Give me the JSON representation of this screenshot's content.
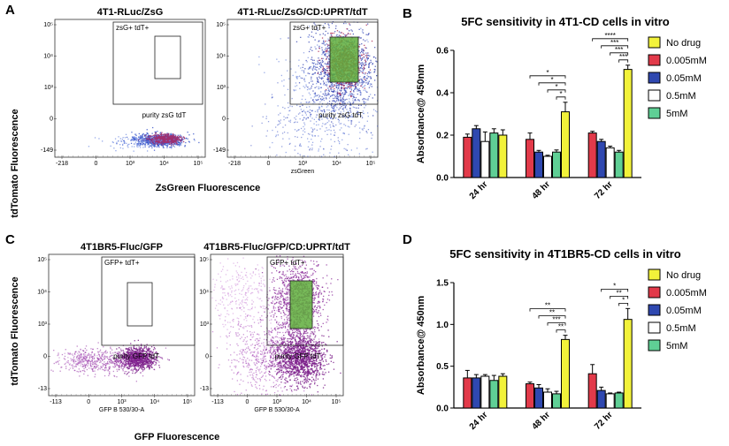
{
  "panels": [
    {
      "label": "A"
    },
    {
      "label": "B"
    },
    {
      "label": "C"
    },
    {
      "label": "D"
    }
  ],
  "flow": {
    "A": {
      "ylabel": "tdTomato Fluorescence",
      "xlabel": "ZsGreen Fluorescence",
      "plots": [
        {
          "title": "4T1-RLuc/ZsG",
          "gate_label": "zsG+ tdT+",
          "purity_label": "purity zsG tdT",
          "x_axis_small": "",
          "y_ticks": [
            "10⁵",
            "10⁴",
            "10³",
            "0",
            "-149"
          ],
          "x_ticks": [
            "-218",
            "0",
            "10³",
            "10⁴",
            "10⁵"
          ]
        },
        {
          "title": "4T1-RLuc/ZsG/CD:UPRT/tdT",
          "gate_label": "zsG+ tdT+",
          "purity_label": "purity zsG tdT",
          "x_axis_small": "zsGreen",
          "y_ticks": [
            "10⁵",
            "10⁴",
            "10³",
            "0",
            "-149"
          ],
          "x_ticks": [
            "-218",
            "0",
            "10³",
            "10⁴",
            "10⁵"
          ]
        }
      ]
    },
    "C": {
      "ylabel": "tdTomato Fluorescence",
      "xlabel": "GFP Fluorescence",
      "plots": [
        {
          "title": "4T1BR5-Fluc/GFP",
          "gate_label": "GFP+ tdT+",
          "purity_label": "purity GFP tdT",
          "x_axis_small": "GFP B 530/30-A",
          "y_ticks": [
            "10⁵",
            "10⁴",
            "10³",
            "0",
            "-13"
          ],
          "x_ticks": [
            "-113",
            "0",
            "10³",
            "10⁴",
            "10⁵"
          ]
        },
        {
          "title": "4T1BR5-Fluc/GFP/CD:UPRT/tdT",
          "gate_label": "GFP+ tdT+",
          "purity_label": "purity GFP tdT",
          "x_axis_small": "GFP B 530/30-A",
          "y_ticks": [
            "10⁵",
            "10⁴",
            "10³",
            "0",
            "-13"
          ],
          "x_ticks": [
            "-113",
            "0",
            "10³",
            "10⁴",
            "10⁵"
          ]
        }
      ]
    }
  },
  "colors": {
    "no_drug": "#f2f23a",
    "c0005": "#e23a4a",
    "c005": "#2f48b0",
    "c05": "#ffffff",
    "c5": "#5fcf95",
    "flow_density": "#7b1f8a",
    "gate_fill": "#5fae3c"
  },
  "chart_data": [
    {
      "type": "bar",
      "title": "5FC sensitivity in 4T1-CD cells in vitro",
      "xlabel": "",
      "ylabel": "Absorbance@ 450nm",
      "categories": [
        "24 hr",
        "48 hr",
        "72 hr"
      ],
      "ylim": [
        0,
        0.6
      ],
      "yticks": [
        "0.0",
        "0.2",
        "0.4",
        "0.6"
      ],
      "series": [
        {
          "name": "0.005mM",
          "values": [
            0.19,
            0.18,
            0.21
          ],
          "errors": [
            0.015,
            0.03,
            0.008
          ]
        },
        {
          "name": "0.05mM",
          "values": [
            0.23,
            0.12,
            0.17
          ],
          "errors": [
            0.015,
            0.008,
            0.01
          ]
        },
        {
          "name": "0.5mM",
          "values": [
            0.17,
            0.1,
            0.14
          ],
          "errors": [
            0.045,
            0.005,
            0.008
          ]
        },
        {
          "name": "5mM",
          "values": [
            0.21,
            0.12,
            0.12
          ],
          "errors": [
            0.02,
            0.01,
            0.008
          ]
        },
        {
          "name": "No drug",
          "values": [
            0.2,
            0.31,
            0.51
          ],
          "errors": [
            0.025,
            0.045,
            0.02
          ]
        }
      ],
      "legend_order": [
        "No drug",
        "0.005mM",
        "0.05mM",
        "0.5mM",
        "5mM"
      ],
      "significance": {
        "48 hr": [
          "*",
          "*",
          "*",
          "*"
        ],
        "72 hr": [
          "****",
          "***",
          "***",
          "***"
        ]
      }
    },
    {
      "type": "bar",
      "title": "5FC sensitivity in 4T1BR5-CD cells in vitro",
      "xlabel": "",
      "ylabel": "Absorbance@ 450nm",
      "categories": [
        "24 hr",
        "48 hr",
        "72 hr"
      ],
      "ylim": [
        0,
        1.5
      ],
      "yticks": [
        "0.0",
        "0.5",
        "1.0",
        "1.5"
      ],
      "series": [
        {
          "name": "0.005mM",
          "values": [
            0.36,
            0.29,
            0.41
          ],
          "errors": [
            0.09,
            0.02,
            0.11
          ]
        },
        {
          "name": "0.05mM",
          "values": [
            0.36,
            0.24,
            0.21
          ],
          "errors": [
            0.04,
            0.04,
            0.04
          ]
        },
        {
          "name": "0.5mM",
          "values": [
            0.38,
            0.19,
            0.17
          ],
          "errors": [
            0.02,
            0.04,
            0.01
          ]
        },
        {
          "name": "5mM",
          "values": [
            0.33,
            0.17,
            0.18
          ],
          "errors": [
            0.06,
            0.03,
            0.01
          ]
        },
        {
          "name": "No drug",
          "values": [
            0.38,
            0.82,
            1.06
          ],
          "errors": [
            0.03,
            0.05,
            0.13
          ]
        }
      ],
      "legend_order": [
        "No drug",
        "0.005mM",
        "0.05mM",
        "0.5mM",
        "5mM"
      ],
      "significance": {
        "48 hr": [
          "**",
          "**",
          "***",
          "**"
        ],
        "72 hr": [
          "*",
          "**",
          "*"
        ]
      }
    }
  ]
}
